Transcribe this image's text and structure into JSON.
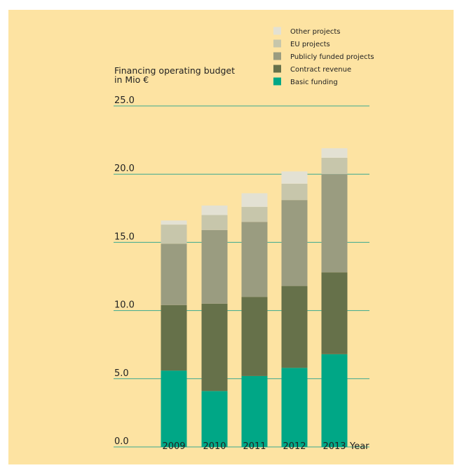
{
  "chart_data": {
    "type": "bar",
    "stacked": true,
    "ylabel_line1": "Financing operating budget",
    "ylabel_line2": "in Mio €",
    "xlabel": "Year",
    "ylim": [
      0,
      25
    ],
    "yticks": [
      "0.0",
      "5.0",
      "10.0",
      "15.0",
      "20.0",
      "25.0"
    ],
    "ytick_values": [
      0,
      5,
      10,
      15,
      20,
      25
    ],
    "grid": true,
    "legend_position": "top-right",
    "categories": [
      "2009",
      "2010",
      "2011",
      "2012",
      "2013"
    ],
    "series": [
      {
        "name": "Basic funding",
        "color": "#00a786",
        "values": [
          5.6,
          4.1,
          5.2,
          5.8,
          6.8
        ]
      },
      {
        "name": "Contract revenue",
        "color": "#66714a",
        "values": [
          4.8,
          6.4,
          5.8,
          6.0,
          6.0
        ]
      },
      {
        "name": "Publicly funded projects",
        "color": "#9a9c80",
        "values": [
          4.5,
          5.4,
          5.5,
          6.3,
          7.2
        ]
      },
      {
        "name": "EU projects",
        "color": "#c7c6ab",
        "values": [
          1.4,
          1.1,
          1.1,
          1.2,
          1.2
        ]
      },
      {
        "name": "Other projects",
        "color": "#e3e1d3",
        "values": [
          0.3,
          0.7,
          1.0,
          0.9,
          0.7
        ]
      }
    ],
    "legend_order": [
      "Other projects",
      "EU projects",
      "Publicly funded projects",
      "Contract revenue",
      "Basic funding"
    ]
  }
}
